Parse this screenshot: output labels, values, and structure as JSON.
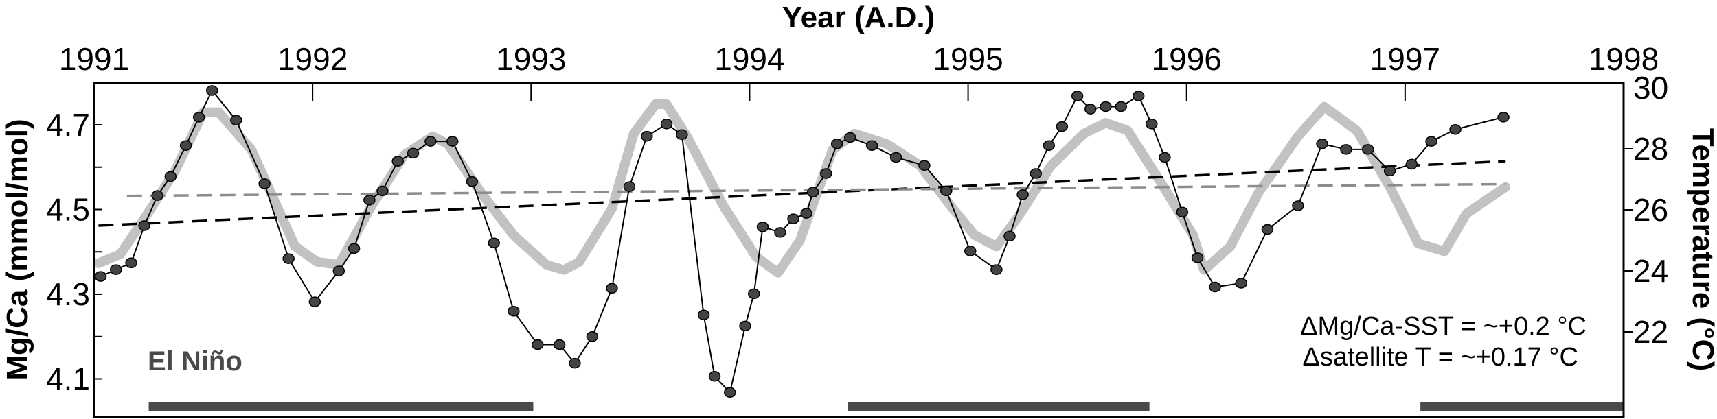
{
  "chart_data": {
    "type": "line",
    "xlabel": "Year (A.D.)",
    "ylabel_left": "Mg/Ca (mmol/mol)",
    "ylabel_right": "Temperature (°C)",
    "xlim": [
      1991,
      1998
    ],
    "ylim_left": [
      4.03,
      4.82
    ],
    "ylim_right": [
      20.2,
      30.2
    ],
    "x_ticks": [
      "1991",
      "1992",
      "1993",
      "1994",
      "1995",
      "1996",
      "1997",
      "1998"
    ],
    "y_ticks_left": [
      "4.7",
      "4.5",
      "4.3",
      "4.1"
    ],
    "y_ticks_right": [
      "30",
      "28",
      "26",
      "24",
      "22"
    ],
    "grid": false,
    "series": [
      {
        "axis": "left",
        "style": "black line with dark gray circle markers",
        "color": "#000000",
        "marker_color": "#444444",
        "x": [
          1991.03,
          1991.1,
          1991.17,
          1991.23,
          1991.29,
          1991.35,
          1991.42,
          1991.48,
          1991.54,
          1991.65,
          1991.78,
          1991.89,
          1992.01,
          1992.12,
          1992.19,
          1992.26,
          1992.32,
          1992.39,
          1992.46,
          1992.54,
          1992.64,
          1992.73,
          1992.83,
          1992.92,
          1993.03,
          1993.13,
          1993.2,
          1993.28,
          1993.37,
          1993.45,
          1993.53,
          1993.62,
          1993.69,
          1993.79,
          1993.84,
          1993.91,
          1993.98,
          1994.02,
          1994.06,
          1994.14,
          1994.2,
          1994.26,
          1994.29,
          1994.35,
          1994.4,
          1994.46,
          1994.56,
          1994.67,
          1994.8,
          1994.9,
          1995.01,
          1995.13,
          1995.19,
          1995.25,
          1995.31,
          1995.37,
          1995.43,
          1995.5,
          1995.56,
          1995.63,
          1995.7,
          1995.78,
          1995.84,
          1995.9,
          1995.98,
          1996.05,
          1996.13,
          1996.25,
          1996.37,
          1996.51,
          1996.62,
          1996.73,
          1996.83,
          1996.93,
          1997.03,
          1997.12,
          1997.23,
          1997.45
        ],
        "y": [
          4.342,
          4.358,
          4.374,
          4.462,
          4.533,
          4.578,
          4.651,
          4.718,
          4.781,
          4.711,
          4.561,
          4.384,
          4.282,
          4.355,
          4.408,
          4.522,
          4.544,
          4.614,
          4.633,
          4.661,
          4.661,
          4.566,
          4.421,
          4.26,
          4.181,
          4.181,
          4.137,
          4.2,
          4.314,
          4.554,
          4.673,
          4.702,
          4.677,
          4.251,
          4.106,
          4.068,
          4.225,
          4.301,
          4.459,
          4.446,
          4.478,
          4.491,
          4.541,
          4.585,
          4.655,
          4.67,
          4.651,
          4.623,
          4.604,
          4.544,
          4.402,
          4.358,
          4.437,
          4.535,
          4.585,
          4.651,
          4.696,
          4.768,
          4.737,
          4.743,
          4.743,
          4.768,
          4.702,
          4.623,
          4.494,
          4.386,
          4.317,
          4.326,
          4.453,
          4.509,
          4.655,
          4.642,
          4.642,
          4.591,
          4.607,
          4.661,
          4.689,
          4.718
        ]
      },
      {
        "axis": "right",
        "style": "thick light gray line",
        "color": "#c2c2c2",
        "x": [
          1991.02,
          1991.12,
          1991.22,
          1991.37,
          1991.5,
          1991.57,
          1991.72,
          1991.92,
          1992.02,
          1992.12,
          1992.27,
          1992.42,
          1992.55,
          1992.62,
          1992.77,
          1992.92,
          1993.07,
          1993.15,
          1993.22,
          1993.37,
          1993.47,
          1993.57,
          1993.62,
          1993.72,
          1993.88,
          1994.03,
          1994.13,
          1994.23,
          1994.38,
          1994.48,
          1994.63,
          1994.78,
          1994.93,
          1995.03,
          1995.13,
          1995.23,
          1995.38,
          1995.53,
          1995.63,
          1995.73,
          1995.88,
          1996.03,
          1996.08,
          1996.2,
          1996.33,
          1996.51,
          1996.63,
          1996.78,
          1996.93,
          1997.06,
          1997.18,
          1997.28,
          1997.46
        ],
        "y": [
          24.25,
          24.55,
          25.6,
          27.27,
          29.2,
          29.2,
          27.97,
          24.8,
          24.3,
          24.2,
          26.13,
          27.8,
          28.41,
          28.15,
          26.57,
          25.17,
          24.2,
          24.03,
          24.29,
          26.04,
          28.5,
          29.46,
          29.46,
          28.32,
          26.13,
          24.46,
          23.94,
          24.99,
          27.97,
          28.5,
          28.15,
          27.45,
          26.04,
          25.17,
          24.8,
          25.78,
          27.45,
          28.5,
          28.85,
          28.6,
          26.92,
          25.17,
          24.03,
          24.8,
          26.57,
          28.41,
          29.38,
          28.59,
          26.75,
          24.9,
          24.64,
          25.87,
          26.75
        ]
      }
    ],
    "trend_lines": [
      {
        "axis": "left",
        "style": "black dashed",
        "color": "#000000",
        "x": [
          1991.02,
          1997.46
        ],
        "y": [
          4.462,
          4.614
        ]
      },
      {
        "axis": "left",
        "style": "gray dashed",
        "color": "#8c8c8c",
        "x": [
          1991.15,
          1997.46
        ],
        "y": [
          4.532,
          4.56
        ]
      }
    ],
    "annotations": {
      "mgca_sst": "ΔMg/Ca-SST = ~+0.2 °C",
      "satellite_t": "Δsatellite T = ~+0.17 °C",
      "el_nino_label": "El Niño"
    },
    "el_nino_periods": [
      [
        1991.25,
        1993.01
      ],
      [
        1994.45,
        1995.83
      ],
      [
        1997.07,
        1998.0
      ]
    ],
    "el_nino_color": "#4a4a4a"
  }
}
